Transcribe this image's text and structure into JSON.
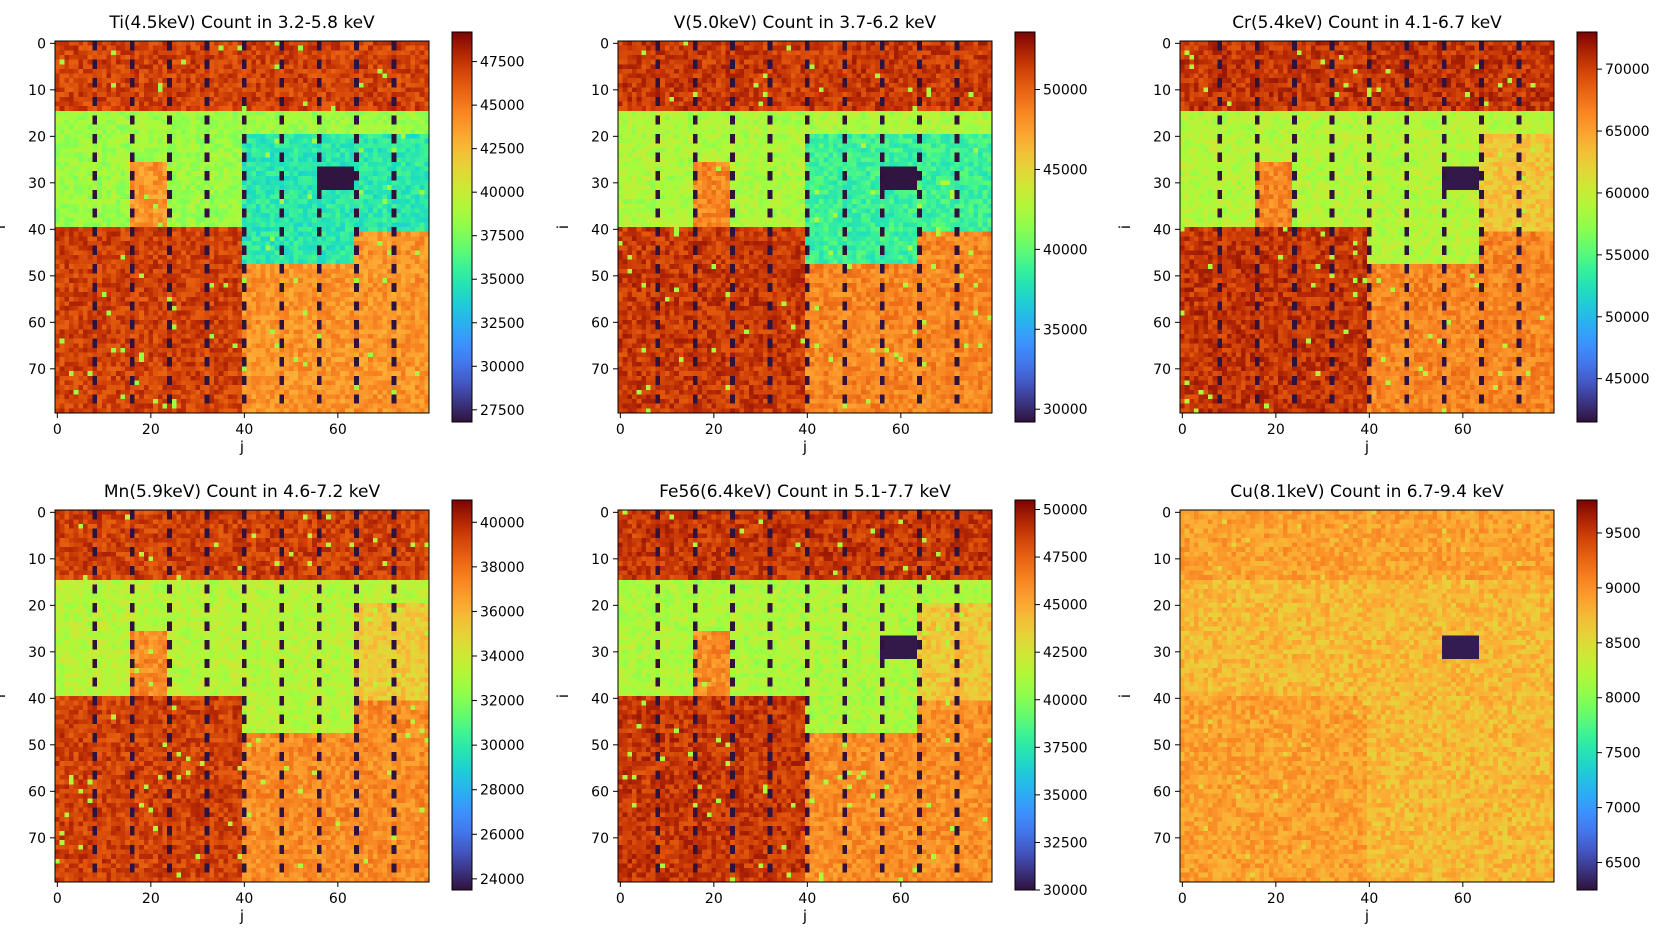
{
  "figure": {
    "colormap": "turbo",
    "heatmap_colors": {
      "low": "#2a1f5c",
      "orange": "#f08a30",
      "dark_red": "#b12a10",
      "yellow": "#f0c040",
      "green": "#b4e24c",
      "cyan": "#3fd3b2",
      "hole": "#2a1747"
    }
  },
  "chart_data": [
    {
      "type": "heatmap",
      "title": "Ti(4.5keV) Count in 3.2-5.8 keV",
      "xlabel": "j",
      "ylabel": "i",
      "x_ticks": [
        "0",
        "20",
        "40",
        "60"
      ],
      "y_ticks": [
        "0",
        "10",
        "20",
        "30",
        "40",
        "50",
        "60",
        "70"
      ],
      "grid_shape": [
        80,
        80
      ],
      "dashed_column_lines_j": [
        8,
        16,
        24,
        32,
        40,
        48,
        56,
        64,
        72
      ],
      "colorbar_range": [
        26800,
        49200
      ],
      "colorbar_ticks": [
        "27500",
        "30000",
        "32500",
        "35000",
        "37500",
        "40000",
        "42500",
        "45000",
        "47500"
      ],
      "region_levels": {
        "hole": 26900,
        "dark_red": 47000,
        "orange": 44000,
        "yellow": 41000,
        "green": 38500,
        "cyan": 35000
      },
      "hole_region": {
        "i": [
          27,
          31
        ],
        "j": [
          56,
          63
        ]
      }
    },
    {
      "type": "heatmap",
      "title": "V(5.0keV) Count in 3.7-6.2 keV",
      "xlabel": "j",
      "ylabel": "i",
      "x_ticks": [
        "0",
        "20",
        "40",
        "60"
      ],
      "y_ticks": [
        "0",
        "10",
        "20",
        "30",
        "40",
        "50",
        "60",
        "70"
      ],
      "grid_shape": [
        80,
        80
      ],
      "dashed_column_lines_j": [
        8,
        16,
        24,
        32,
        40,
        48,
        56,
        64,
        72
      ],
      "colorbar_range": [
        29200,
        53600
      ],
      "colorbar_ticks": [
        "30000",
        "35000",
        "40000",
        "45000",
        "50000"
      ],
      "region_levels": {
        "hole": 29300,
        "dark_red": 51500,
        "orange": 48500,
        "yellow": 45500,
        "green": 42500,
        "cyan": 38800
      },
      "hole_region": {
        "i": [
          27,
          31
        ],
        "j": [
          56,
          63
        ]
      }
    },
    {
      "type": "heatmap",
      "title": "Cr(5.4keV) Count in 4.1-6.7 keV",
      "xlabel": "j",
      "ylabel": "i",
      "x_ticks": [
        "0",
        "20",
        "40",
        "60"
      ],
      "y_ticks": [
        "0",
        "10",
        "20",
        "30",
        "40",
        "50",
        "60",
        "70"
      ],
      "grid_shape": [
        80,
        80
      ],
      "dashed_column_lines_j": [
        8,
        16,
        24,
        32,
        40,
        48,
        56,
        64,
        72
      ],
      "colorbar_range": [
        41500,
        73000
      ],
      "colorbar_ticks": [
        "45000",
        "50000",
        "55000",
        "60000",
        "65000",
        "70000"
      ],
      "region_levels": {
        "hole": 41800,
        "dark_red": 70500,
        "orange": 66500,
        "yellow": 63000,
        "green": 59000,
        "cyan": 59000
      },
      "hole_region": {
        "i": [
          27,
          31
        ],
        "j": [
          56,
          63
        ]
      }
    },
    {
      "type": "heatmap",
      "title": "Mn(5.9keV) Count in 4.6-7.2 keV",
      "xlabel": "j",
      "ylabel": "i",
      "x_ticks": [
        "0",
        "20",
        "40",
        "60"
      ],
      "y_ticks": [
        "0",
        "10",
        "20",
        "30",
        "40",
        "50",
        "60",
        "70"
      ],
      "grid_shape": [
        80,
        80
      ],
      "dashed_column_lines_j": [
        8,
        16,
        24,
        32,
        40,
        48,
        56,
        64,
        72
      ],
      "colorbar_range": [
        23500,
        41000
      ],
      "colorbar_ticks": [
        "24000",
        "26000",
        "28000",
        "30000",
        "32000",
        "34000",
        "36000",
        "38000",
        "40000"
      ],
      "region_levels": {
        "hole": 23700,
        "dark_red": 39300,
        "orange": 37200,
        "yellow": 35300,
        "green": 33300,
        "cyan": 33300
      },
      "hole_region": null
    },
    {
      "type": "heatmap",
      "title": "Fe56(6.4keV) Count in 5.1-7.7 keV",
      "xlabel": "j",
      "ylabel": "i",
      "x_ticks": [
        "0",
        "20",
        "40",
        "60"
      ],
      "y_ticks": [
        "0",
        "10",
        "20",
        "30",
        "40",
        "50",
        "60",
        "70"
      ],
      "grid_shape": [
        80,
        80
      ],
      "dashed_column_lines_j": [
        8,
        16,
        24,
        32,
        40,
        48,
        56,
        64,
        72
      ],
      "colorbar_range": [
        30000,
        50500
      ],
      "colorbar_ticks": [
        "30000",
        "32500",
        "35000",
        "37500",
        "40000",
        "42500",
        "45000",
        "47500",
        "50000"
      ],
      "region_levels": {
        "hole": 30200,
        "dark_red": 48800,
        "orange": 46000,
        "yellow": 44000,
        "green": 41200,
        "cyan": 41200
      },
      "hole_region": {
        "i": [
          27,
          31
        ],
        "j": [
          56,
          63
        ]
      }
    },
    {
      "type": "heatmap",
      "title": "Cu(8.1keV) Count in 6.7-9.4 keV",
      "xlabel": "j",
      "ylabel": "i",
      "x_ticks": [
        "0",
        "20",
        "40",
        "60"
      ],
      "y_ticks": [
        "0",
        "10",
        "20",
        "30",
        "40",
        "50",
        "60",
        "70"
      ],
      "grid_shape": [
        80,
        80
      ],
      "dashed_column_lines_j": [
        8,
        16,
        24,
        32,
        40,
        48,
        56,
        64,
        72
      ],
      "colorbar_range": [
        6250,
        9800
      ],
      "colorbar_ticks": [
        "6500",
        "7000",
        "7500",
        "8000",
        "8500",
        "9000",
        "9500"
      ],
      "region_levels": {
        "hole": 6300,
        "dark_red": 8900,
        "orange": 8750,
        "yellow": 8650,
        "green": 8550,
        "cyan": 8550
      },
      "hole_region": {
        "i": [
          27,
          31
        ],
        "j": [
          56,
          63
        ]
      }
    }
  ]
}
